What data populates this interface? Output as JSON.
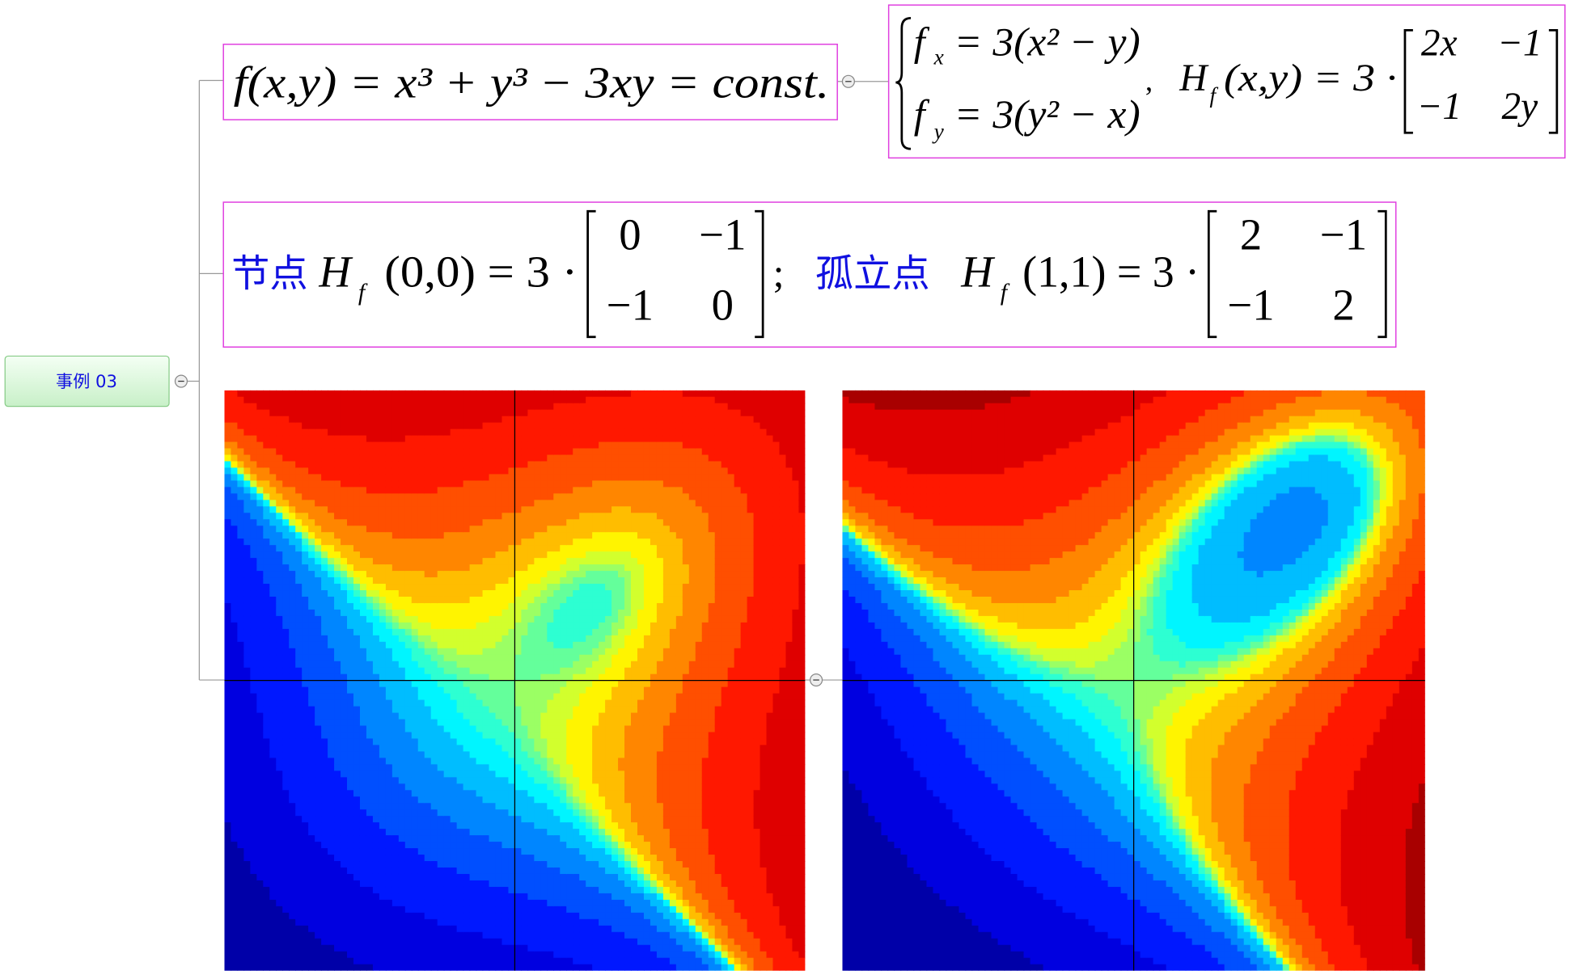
{
  "root": {
    "label": "事例 03"
  },
  "nodes": [
    {
      "text": "f(x,y) = x³ + y³ − 3xy = const."
    },
    {
      "line1": {
        "f": "f",
        "sub": "x",
        "rhs": "= 3(x² − y)"
      },
      "line2": {
        "f": "f",
        "sub": "y",
        "rhs": "= 3(y² − x)"
      },
      "sep": ",",
      "hessian": {
        "h": "H",
        "sub": "f",
        "rhs": "(x,y) = 3 ·"
      },
      "matrix": [
        [
          "2x",
          "−1"
        ],
        [
          "−1",
          "2y"
        ]
      ]
    },
    {
      "label1": "节点",
      "expr1": {
        "h": "H",
        "sub": "f",
        "rhs": "(0,0) = 3 ·"
      },
      "matrix1": [
        [
          "0",
          "−1"
        ],
        [
          "−1",
          "0"
        ]
      ],
      "sep": ";",
      "label2": "孤立点",
      "expr2": {
        "h": "H",
        "sub": "f",
        "rhs": "(1,1) = 3 ·"
      },
      "matrix2": [
        [
          "2",
          "−1"
        ],
        [
          "−1",
          "2"
        ]
      ]
    }
  ]
}
